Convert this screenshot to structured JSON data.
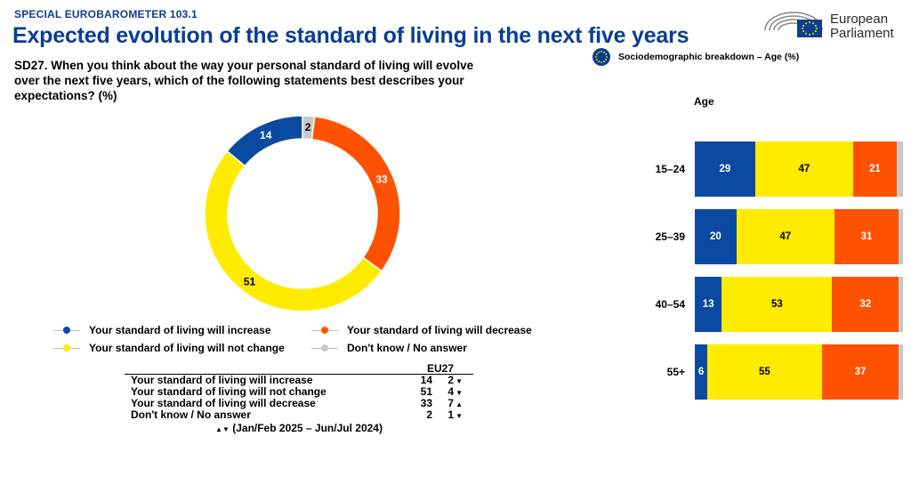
{
  "header": {
    "survey": "SPECIAL EUROBAROMETER 103.1",
    "title": "Expected evolution of the standard of living in the next five years",
    "question": "SD27. When you think about the way your personal standard of living will evolve over the next five years, which of the following statements best describes your expectations? (%)"
  },
  "logo": {
    "line1": "European",
    "line2": "Parliament"
  },
  "breakdown_label": "Sociodemographic breakdown – Age (%)",
  "colors": {
    "increase": "#0b4aa2",
    "not_change": "#ffeb00",
    "decrease": "#ff5200",
    "dont_know": "#c8c8c8",
    "title": "#0b3e91"
  },
  "legend": [
    {
      "key": "increase",
      "label": "Your standard of living will increase",
      "color": "#0b4aa2"
    },
    {
      "key": "decrease",
      "label": "Your standard of living will decrease",
      "color": "#ff5200"
    },
    {
      "key": "not_change",
      "label": "Your standard of living will not change",
      "color": "#ffeb00"
    },
    {
      "key": "dont_know",
      "label": "Don't know / No answer",
      "color": "#c8c8c8"
    }
  ],
  "table": {
    "column_header": "EU27",
    "rows": [
      {
        "label": "Your standard of living will increase",
        "value": "14",
        "diff": "2",
        "arrow": "▼"
      },
      {
        "label": "Your standard of living will not change",
        "value": "51",
        "diff": "4",
        "arrow": "▼"
      },
      {
        "label": "Your standard of living will decrease",
        "value": "33",
        "diff": "7",
        "arrow": "▲"
      },
      {
        "label": "Don't know / No answer",
        "value": "2",
        "diff": "1",
        "arrow": "▼"
      }
    ],
    "note_arrows": "▲▼",
    "note": "(Jan/Feb 2025 – Jun/Jul 2024)"
  },
  "chart_data": [
    {
      "type": "pie",
      "title": "",
      "categories": [
        "Your standard of living will increase",
        "Your standard of living will decrease",
        "Your standard of living will not change",
        "Don't know / No answer"
      ],
      "values": [
        14,
        33,
        51,
        2
      ],
      "colors": [
        "#0b4aa2",
        "#ff5200",
        "#ffeb00",
        "#c8c8c8"
      ],
      "labels": [
        "14",
        "33",
        "51",
        "2"
      ],
      "donut": true
    },
    {
      "type": "bar",
      "orientation": "horizontal",
      "stacked": true,
      "title": "Age",
      "categories": [
        "15-24",
        "25-39",
        "40-54",
        "55+"
      ],
      "series": [
        {
          "name": "Your standard of living will increase",
          "values": [
            29,
            20,
            13,
            6
          ],
          "color": "#0b4aa2"
        },
        {
          "name": "Your standard of living will not change",
          "values": [
            47,
            47,
            53,
            55
          ],
          "color": "#ffeb00"
        },
        {
          "name": "Your standard of living will decrease",
          "values": [
            21,
            31,
            32,
            37
          ],
          "color": "#ff5200"
        },
        {
          "name": "Don't know / No answer",
          "values": [
            3,
            2,
            2,
            2
          ],
          "color": "#c8c8c8"
        }
      ],
      "xlim": [
        0,
        100
      ]
    }
  ]
}
